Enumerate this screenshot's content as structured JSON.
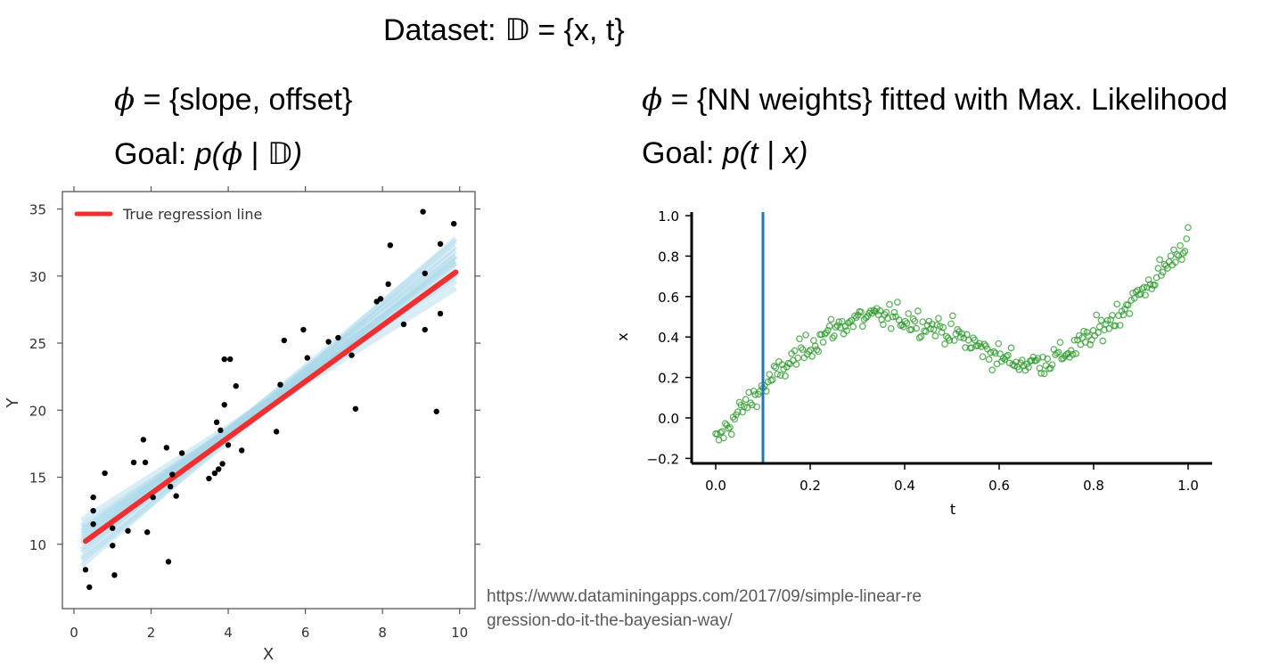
{
  "header": {
    "dataset_prefix": "Dataset: ",
    "dataset_symbol": "𝔻",
    "dataset_suffix": " = {x, t}"
  },
  "left": {
    "phi_symbol": "ϕ",
    "phi_text": " = {slope, offset}",
    "goal_prefix": "Goal: ",
    "goal_open": "p(",
    "goal_phi": "ϕ",
    "goal_bar": " | ",
    "goal_set": "𝔻",
    "goal_close": ")"
  },
  "right": {
    "phi_symbol": "ϕ",
    "phi_text": " = {NN weights} fitted with Max. Likelihood",
    "goal_prefix": "Goal: ",
    "goal_expr": "p(t | x)"
  },
  "source": {
    "line1": "https://www.dataminingapps.com/2017/09/simple-linear-re",
    "line2": "gression-do-it-the-bayesian-way/"
  },
  "colors": {
    "true_line": "#f03030",
    "posterior_lines": "#a8d8e8",
    "points_left": "#000000",
    "points_right": "#2a9a2a",
    "vline": "#1f77b4"
  },
  "chart_data": [
    {
      "type": "scatter",
      "xlabel": "X",
      "ylabel": "Y",
      "xlim": [
        -0.3,
        10.4
      ],
      "ylim": [
        5.2,
        36.3
      ],
      "xticks": [
        0,
        2,
        4,
        6,
        8,
        10
      ],
      "yticks": [
        10,
        15,
        20,
        25,
        30,
        35
      ],
      "legend": {
        "position": "top-left",
        "entries": [
          "True regression line"
        ]
      },
      "points": [
        [
          0.3,
          8.1
        ],
        [
          0.4,
          6.8
        ],
        [
          0.5,
          11.5
        ],
        [
          0.5,
          12.5
        ],
        [
          0.5,
          13.5
        ],
        [
          0.8,
          15.3
        ],
        [
          1.0,
          11.2
        ],
        [
          1.0,
          9.9
        ],
        [
          1.05,
          7.7
        ],
        [
          1.4,
          11.0
        ],
        [
          1.55,
          16.1
        ],
        [
          1.8,
          17.8
        ],
        [
          1.85,
          16.1
        ],
        [
          1.9,
          10.9
        ],
        [
          2.05,
          13.5
        ],
        [
          2.4,
          17.2
        ],
        [
          2.45,
          8.7
        ],
        [
          2.5,
          14.3
        ],
        [
          2.55,
          15.2
        ],
        [
          2.65,
          13.6
        ],
        [
          2.8,
          16.8
        ],
        [
          3.5,
          14.9
        ],
        [
          3.65,
          15.3
        ],
        [
          3.7,
          19.1
        ],
        [
          3.75,
          15.6
        ],
        [
          3.8,
          18.5
        ],
        [
          3.85,
          16.0
        ],
        [
          3.9,
          23.8
        ],
        [
          3.9,
          20.4
        ],
        [
          4.0,
          17.4
        ],
        [
          4.05,
          23.8
        ],
        [
          4.2,
          21.8
        ],
        [
          4.35,
          17.0
        ],
        [
          5.25,
          18.4
        ],
        [
          5.35,
          21.9
        ],
        [
          5.45,
          25.2
        ],
        [
          5.95,
          26.0
        ],
        [
          6.05,
          23.9
        ],
        [
          6.6,
          25.1
        ],
        [
          6.85,
          25.4
        ],
        [
          7.2,
          24.1
        ],
        [
          7.3,
          20.1
        ],
        [
          7.85,
          28.1
        ],
        [
          7.95,
          28.3
        ],
        [
          8.15,
          29.4
        ],
        [
          8.2,
          32.3
        ],
        [
          8.55,
          26.4
        ],
        [
          9.05,
          34.8
        ],
        [
          9.1,
          30.2
        ],
        [
          9.1,
          26.0
        ],
        [
          9.4,
          19.9
        ],
        [
          9.5,
          27.2
        ],
        [
          9.5,
          32.4
        ],
        [
          9.85,
          33.9
        ]
      ],
      "true_line": {
        "slope": 2.09,
        "intercept": 9.6,
        "x_range": [
          0.3,
          9.9
        ]
      },
      "posterior_lines": [
        {
          "y0": 11.4,
          "y1": 29.1
        },
        {
          "y0": 8.4,
          "y1": 32.8
        },
        {
          "y0": 10.2,
          "y1": 31.5
        },
        {
          "y0": 11.0,
          "y1": 30.2
        },
        {
          "y0": 9.0,
          "y1": 32.2
        },
        {
          "y0": 10.6,
          "y1": 30.9
        },
        {
          "y0": 9.6,
          "y1": 31.2
        },
        {
          "y0": 11.8,
          "y1": 29.6
        },
        {
          "y0": 10.0,
          "y1": 31.9
        },
        {
          "y0": 8.8,
          "y1": 31.5
        },
        {
          "y0": 10.8,
          "y1": 30.4
        },
        {
          "y0": 9.4,
          "y1": 32.6
        },
        {
          "y0": 11.2,
          "y1": 30.0
        },
        {
          "y0": 10.4,
          "y1": 31.0
        }
      ]
    },
    {
      "type": "scatter",
      "xlabel": "t",
      "ylabel": "x",
      "xlim": [
        -0.05,
        1.05
      ],
      "ylim": [
        -0.23,
        1.02
      ],
      "xticks": [
        0.0,
        0.2,
        0.4,
        0.6,
        0.8,
        1.0
      ],
      "yticks": [
        -0.2,
        0.0,
        0.2,
        0.4,
        0.6,
        0.8,
        1.0
      ],
      "xtick_labels": [
        "0.0",
        "0.2",
        "0.4",
        "0.6",
        "0.8",
        "1.0"
      ],
      "ytick_labels": [
        "−0.2",
        "0.0",
        "0.2",
        "0.4",
        "0.6",
        "0.8",
        "1.0"
      ],
      "vertical_line_x": 0.1,
      "n_points": 300,
      "trend": {
        "x": [
          0.0,
          0.05,
          0.1,
          0.15,
          0.2,
          0.25,
          0.3,
          0.35,
          0.4,
          0.45,
          0.5,
          0.55,
          0.6,
          0.65,
          0.7,
          0.75,
          0.8,
          0.85,
          0.9,
          0.95,
          1.0
        ],
        "y": [
          -0.12,
          0.03,
          0.15,
          0.26,
          0.36,
          0.44,
          0.49,
          0.5,
          0.49,
          0.46,
          0.42,
          0.36,
          0.3,
          0.27,
          0.28,
          0.33,
          0.41,
          0.51,
          0.62,
          0.74,
          0.88
        ]
      },
      "noise_sd": 0.045
    }
  ]
}
